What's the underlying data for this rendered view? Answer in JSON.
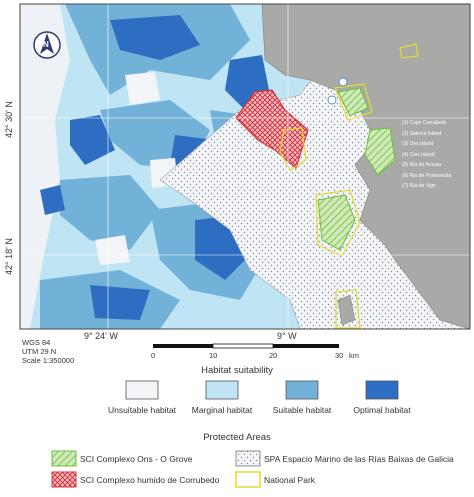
{
  "map": {
    "lat_labels": [
      "42° 30' N",
      "42° 18' N"
    ],
    "lon_labels": [
      "9° 24' W",
      "9° W"
    ],
    "north_arrow_letter": "N",
    "projection": [
      "WGS 84",
      "UTM 29 N",
      "Scale 1:350000"
    ],
    "scale_bar": {
      "ticks": [
        "0",
        "10",
        "20",
        "30"
      ],
      "unit": "km"
    },
    "key_numbers": [
      "1",
      "2",
      "3",
      "4",
      "5",
      "6",
      "7"
    ],
    "key_items": [
      {
        "num": "1",
        "label": "Cape Corrubedo"
      },
      {
        "num": "2",
        "label": "Sálvora Island"
      },
      {
        "num": "3",
        "label": "Ons Island"
      },
      {
        "num": "4",
        "label": "Cíes Island"
      },
      {
        "num": "5",
        "label": "Ría de Arousa"
      },
      {
        "num": "6",
        "label": "Ría de Pontevedra"
      },
      {
        "num": "7",
        "label": "Ría de Vigo"
      }
    ],
    "colors": {
      "land": "#a9aaa8",
      "unsuitable": "#f2f4f8",
      "marginal": "#bfe4f3",
      "suitable": "#72b2d8",
      "optimal": "#2d6ec2",
      "sci_ons": "#6dbd3c",
      "sci_corrubedo": "#d7323d",
      "national_park": "#e3dc2b"
    }
  },
  "habitat_legend": {
    "title": "Habitat suitability",
    "items": [
      {
        "label": "Unsuitable habitat",
        "color": "#f2f4f8"
      },
      {
        "label": "Marginal habitat",
        "color": "#bfe4f3"
      },
      {
        "label": "Suitable habitat",
        "color": "#72b2d8"
      },
      {
        "label": "Optimal habitat",
        "color": "#2d6ec2"
      }
    ]
  },
  "protected_legend": {
    "title": "Protected Areas",
    "items": [
      {
        "label": "SCI Complexo Ons - O Grove"
      },
      {
        "label": "SPA Espacio Marino de las Rías Baixas de Galicia"
      },
      {
        "label": "SCI Complexo humido de Corrubedo"
      },
      {
        "label": "National Park"
      }
    ]
  }
}
